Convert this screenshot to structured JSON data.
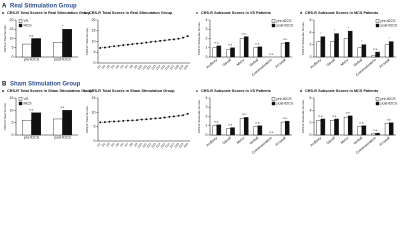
{
  "sections": [
    {
      "letter": "A",
      "heading": "Real Stimulation Group"
    },
    {
      "letter": "B",
      "heading": "Sham Stimulation Group"
    }
  ],
  "chart_data": [
    {
      "type": "bar",
      "panel": "a",
      "title": "CRS-R Total Scores in Real Stimulation Group",
      "ylabel": "CRS-R Total Scores",
      "categories": [
        "pre-tDCS",
        "post-tDCS"
      ],
      "series": [
        {
          "name": "VS",
          "color": "#ffffff",
          "values": [
            7,
            8
          ]
        },
        {
          "name": "MCS",
          "color": "#111111",
          "values": [
            10,
            15
          ]
        }
      ],
      "significance": [
        "n.s.",
        "*"
      ],
      "ylim": [
        0,
        20
      ],
      "yticks": [
        0,
        5,
        10,
        15,
        20
      ],
      "legend": "top-left"
    },
    {
      "type": "line",
      "panel": "b",
      "title": "CRS-R Total Scores in Real Stimulation Group",
      "ylabel": "CRS-R Total Scores",
      "categories": [
        "D1",
        "D2",
        "D3",
        "D4",
        "D5",
        "D6",
        "D7",
        "D8",
        "D9",
        "D10",
        "D11",
        "D12",
        "D13",
        "D14",
        "D15",
        "D16",
        "D17",
        "D18",
        "D19",
        "D20"
      ],
      "values": [
        7,
        7.2,
        7.5,
        7.8,
        8,
        8.3,
        8.5,
        8.8,
        9,
        9.2,
        9.5,
        9.8,
        10,
        10.3,
        10.5,
        10.8,
        11,
        11.3,
        11.8,
        12.5
      ],
      "color": "#111111",
      "ylim": [
        0,
        20
      ],
      "yticks": [
        0,
        5,
        10,
        15,
        20
      ]
    },
    {
      "type": "bar",
      "panel": "c",
      "title": "CRS-R Subscale Scores in VS Patients",
      "ylabel": "CRS-R Subscale Scores",
      "categories": [
        "Auditory",
        "Visual",
        "Motor",
        "Verbal",
        "Communication",
        "Arousal"
      ],
      "series": [
        {
          "name": "pre-tDCS",
          "color": "#ffffff",
          "values": [
            1,
            0.8,
            2,
            1,
            0,
            1.5
          ]
        },
        {
          "name": "post-tDCS",
          "color": "#111111",
          "values": [
            1.2,
            1,
            2.2,
            1.1,
            0,
            1.6
          ]
        }
      ],
      "significance": [
        "n.s.",
        "n.s.",
        "n.s.",
        "n.s.",
        "n.s.",
        "n.s."
      ],
      "ylim": [
        0,
        4
      ],
      "yticks": [
        0,
        1,
        2,
        3,
        4
      ],
      "legend": "top-right"
    },
    {
      "type": "bar",
      "panel": "d",
      "title": "CRS-R Subscale Scores in MCS Patients",
      "ylabel": "CRS-R Subscale Scores",
      "categories": [
        "Auditory",
        "Visual",
        "Motor",
        "Verbal",
        "Communication",
        "Arousal"
      ],
      "series": [
        {
          "name": "pre-tDCS",
          "color": "#ffffff",
          "values": [
            2.5,
            2.5,
            3,
            1.5,
            0.2,
            2
          ]
        },
        {
          "name": "post-tDCS",
          "color": "#111111",
          "values": [
            3.3,
            3.8,
            4.2,
            2,
            0.8,
            2.5
          ]
        }
      ],
      "significance": [
        "*",
        "*",
        "*",
        "*",
        "n.s.",
        "*"
      ],
      "ylim": [
        0,
        6
      ],
      "yticks": [
        0,
        2,
        4,
        6
      ],
      "legend": "top-right"
    },
    {
      "type": "bar",
      "panel": "a",
      "title": "CRS-R Total Scores in Sham Stimulation Group",
      "ylabel": "CRS-R Total Scores",
      "categories": [
        "pre-tDCS",
        "post-tDCS"
      ],
      "series": [
        {
          "name": "VS",
          "color": "#ffffff",
          "values": [
            6,
            6.5
          ]
        },
        {
          "name": "MCS",
          "color": "#111111",
          "values": [
            9,
            10
          ]
        }
      ],
      "significance": [
        "n.s.",
        "n.s."
      ],
      "ylim": [
        0,
        15
      ],
      "yticks": [
        0,
        5,
        10,
        15
      ],
      "legend": "top-left"
    },
    {
      "type": "line",
      "panel": "b",
      "title": "CRS-R Total Scores in Sham Stimulation Group",
      "ylabel": "CRS-R Total Scores",
      "categories": [
        "D1",
        "D2",
        "D3",
        "D4",
        "D5",
        "D6",
        "D7",
        "D8",
        "D9",
        "D10",
        "D11",
        "D12",
        "D13",
        "D14",
        "D15",
        "D16",
        "D17",
        "D18",
        "D19",
        "D20"
      ],
      "values": [
        6.5,
        6.6,
        6.7,
        6.8,
        6.9,
        7,
        7.1,
        7.2,
        7.3,
        7.5,
        7.6,
        7.7,
        7.9,
        8,
        8.2,
        8.4,
        8.6,
        8.8,
        9,
        9.5
      ],
      "color": "#111111",
      "ylim": [
        0,
        15
      ],
      "yticks": [
        0,
        5,
        10,
        15
      ]
    },
    {
      "type": "bar",
      "panel": "c",
      "title": "CRS-R Subscale Scores in VS Patients",
      "ylabel": "CRS-R Subscale Scores",
      "categories": [
        "Auditory",
        "Visual",
        "Motor",
        "Verbal",
        "Communication",
        "Arousal"
      ],
      "series": [
        {
          "name": "pre-tDCS",
          "color": "#ffffff",
          "values": [
            1,
            0.7,
            1.8,
            0.9,
            0,
            1.4
          ]
        },
        {
          "name": "post-tDCS",
          "color": "#111111",
          "values": [
            1.1,
            0.8,
            1.9,
            1,
            0,
            1.5
          ]
        }
      ],
      "significance": [
        "n.s.",
        "n.s.",
        "n.s.",
        "n.s.",
        "n.s.",
        "n.s."
      ],
      "ylim": [
        0,
        4
      ],
      "yticks": [
        0,
        1,
        2,
        3,
        4
      ],
      "legend": "top-right"
    },
    {
      "type": "bar",
      "panel": "d",
      "title": "CRS-R Subscale Scores in MCS Patients",
      "ylabel": "CRS-R Subscale Scores",
      "categories": [
        "Auditory",
        "Visual",
        "Motor",
        "Verbal",
        "Communication",
        "Arousal"
      ],
      "series": [
        {
          "name": "pre-tDCS",
          "color": "#ffffff",
          "values": [
            2.4,
            2.4,
            2.9,
            1.4,
            0.2,
            1.9
          ]
        },
        {
          "name": "post-tDCS",
          "color": "#111111",
          "values": [
            2.6,
            2.6,
            3.1,
            1.5,
            0.3,
            2
          ]
        }
      ],
      "significance": [
        "n.s.",
        "n.s.",
        "n.s.",
        "n.s.",
        "n.s.",
        "n.s."
      ],
      "ylim": [
        0,
        6
      ],
      "yticks": [
        0,
        2,
        4,
        6
      ],
      "legend": "top-right"
    }
  ]
}
